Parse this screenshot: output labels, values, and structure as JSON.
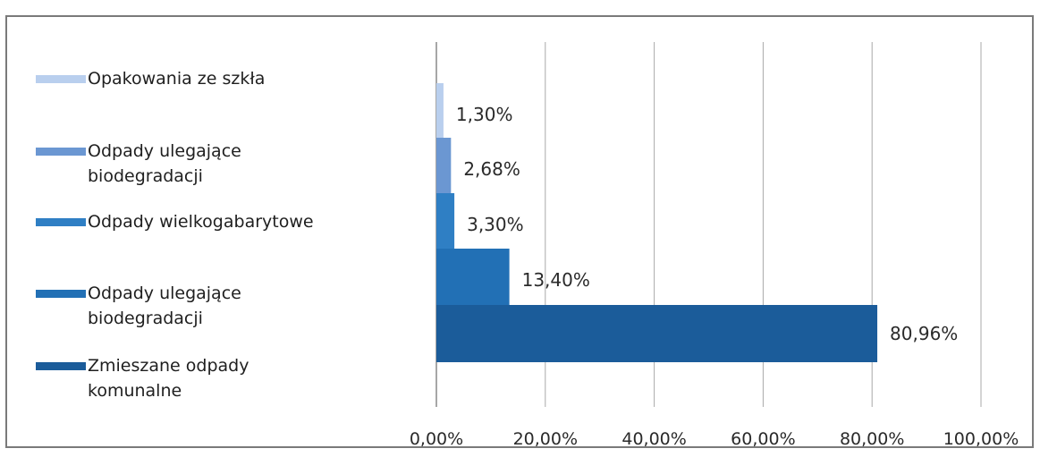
{
  "chart_data": {
    "type": "bar",
    "orientation": "horizontal",
    "categories": [
      "Opakowania ze szkła",
      "Odpady ulegające\nbiodegradacji",
      "Odpady wielkogabarytowe",
      "Odpady ulegające\nbiodegradacji",
      "Zmieszane odpady\nkomunalne"
    ],
    "values": [
      1.3,
      2.68,
      3.3,
      13.4,
      80.96
    ],
    "value_labels": [
      "1,30%",
      "2,68%",
      "3,30%",
      "13,40%",
      "80,96%"
    ],
    "colors": [
      "#b9cfee",
      "#6b97d2",
      "#2f7fc4",
      "#2270b5",
      "#1b5c9a"
    ],
    "xlim": [
      0,
      100
    ],
    "x_ticks": [
      0,
      20,
      40,
      60,
      80,
      100
    ],
    "x_tick_labels": [
      "0,00%",
      "20,00%",
      "40,00%",
      "60,00%",
      "80,00%",
      "100,00%"
    ],
    "grid": "vertical",
    "legend_position": "left",
    "title": "",
    "xlabel": "",
    "ylabel": ""
  }
}
